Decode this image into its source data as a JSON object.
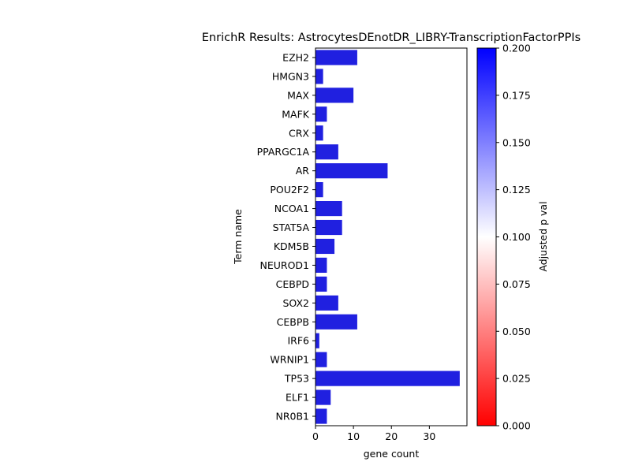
{
  "chart_data": {
    "type": "bar",
    "orientation": "horizontal",
    "title": "EnrichR Results: AstrocytesDEnotDR_LIBRY-TranscriptionFactorPPIs",
    "xlabel": "gene count",
    "ylabel": "Term name",
    "categories": [
      "EZH2",
      "HMGN3",
      "MAX",
      "MAFK",
      "CRX",
      "PPARGC1A",
      "AR",
      "POU2F2",
      "NCOA1",
      "STAT5A",
      "KDM5B",
      "NEUROD1",
      "CEBPD",
      "SOX2",
      "CEBPB",
      "IRF6",
      "WRNIP1",
      "TP53",
      "ELF1",
      "NR0B1"
    ],
    "values": [
      11,
      2,
      10,
      3,
      2,
      6,
      19,
      2,
      7,
      7,
      5,
      3,
      3,
      6,
      11,
      1,
      3,
      38,
      4,
      3
    ],
    "xlim": [
      0,
      39.9
    ],
    "xticks": [
      0,
      10,
      20,
      30
    ],
    "bar_color": "#2020e0",
    "colorbar": {
      "label": "Adjusted p val",
      "min": 0.0,
      "max": 0.2,
      "ticks": [
        "0.000",
        "0.025",
        "0.050",
        "0.075",
        "0.100",
        "0.125",
        "0.150",
        "0.175",
        "0.200"
      ],
      "colors": [
        "#ff0000",
        "#ffffff",
        "#0000ff"
      ]
    }
  }
}
